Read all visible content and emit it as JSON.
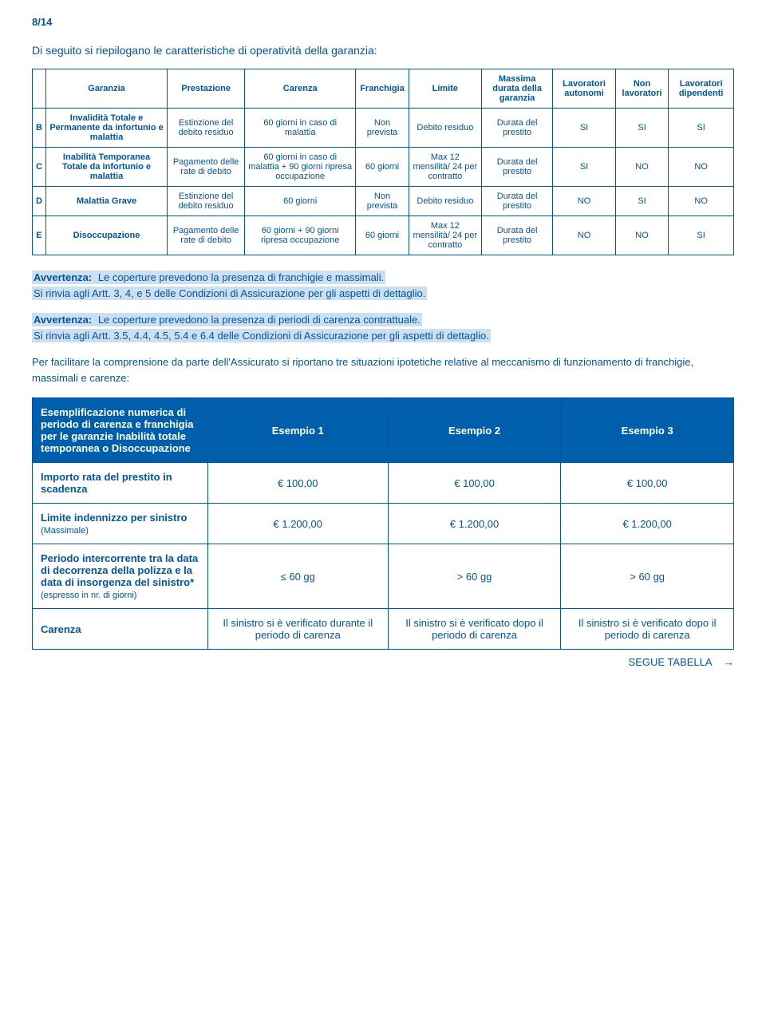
{
  "page_number": "8/14",
  "intro": "Di seguito si riepilogano le caratteristiche di operatività della garanzia:",
  "main_table": {
    "headers": [
      "",
      "Garanzia",
      "Prestazione",
      "Carenza",
      "Franchigia",
      "Limite",
      "Massima durata della garanzia",
      "Lavoratori autonomi",
      "Non lavoratori",
      "Lavoratori dipendenti"
    ],
    "rows": [
      {
        "k": "B",
        "g": "Invalidità Totale e Permanente da infortunio e malattia",
        "p": "Estinzione del debito residuo",
        "c": "60 giorni in caso di malattia",
        "f": "Non prevista",
        "l": "Debito residuo",
        "m": "Durata del prestito",
        "a": "SI",
        "n": "SI",
        "d": "SI"
      },
      {
        "k": "C",
        "g": "Inabilità Temporanea Totale da infortunio e malattia",
        "p": "Pagamento delle rate di debito",
        "c": "60 giorni in caso di malattia + 90 giorni ripresa occupazione",
        "f": "60 giorni",
        "l": "Max 12 mensilità/ 24 per contratto",
        "m": "Durata del prestito",
        "a": "SI",
        "n": "NO",
        "d": "NO"
      },
      {
        "k": "D",
        "g": "Malattia Grave",
        "p": "Estinzione del debito residuo",
        "c": "60 giorni",
        "f": "Non prevista",
        "l": "Debito residuo",
        "m": "Durata del prestito",
        "a": "NO",
        "n": "SI",
        "d": "NO"
      },
      {
        "k": "E",
        "g": "Disoccupazione",
        "p": "Pagamento delle rate di debito",
        "c": "60 giorni + 90 giorni ripresa occupazione",
        "f": "60 giorni",
        "l": "Max 12 mensilità/ 24 per contratto",
        "m": "Durata del prestito",
        "a": "NO",
        "n": "NO",
        "d": "SI"
      }
    ]
  },
  "warnings": {
    "w1a": "Avvertenza:",
    "w1b": " Le coperture prevedono la presenza di franchigie e massimali.",
    "w1c": "Si rinvia agli Artt. 3, 4, e 5  delle Condizioni di Assicurazione per gli aspetti di dettaglio.",
    "w2a": "Avvertenza:",
    "w2b": " Le coperture prevedono la presenza di periodi di carenza contrattuale.",
    "w2c": "Si rinvia agli Artt. 3.5, 4.4, 4.5, 5.4 e 6.4 delle Condizioni di Assicurazione per gli aspetti di dettaglio.",
    "w3": "Per facilitare la comprensione da parte dell'Assicurato si riportano tre situazioni ipotetiche relative al meccanismo di funzionamento di franchigie, massimali e carenze:"
  },
  "ex_table": {
    "header_label": "Esemplificazione numerica di periodo di carenza e franchigia per le garanzie Inabilità totale temporanea o Disoccupazione",
    "col_headers": [
      "Esempio 1",
      "Esempio 2",
      "Esempio 3"
    ],
    "rows": [
      {
        "label": "Importo rata del prestito in scadenza",
        "note": "",
        "v": [
          "€ 100,00",
          "€ 100,00",
          "€ 100,00"
        ]
      },
      {
        "label": "Limite indennizzo per sinistro",
        "note": "(Massimale)",
        "v": [
          "€ 1.200,00",
          "€ 1.200,00",
          "€ 1.200,00"
        ]
      },
      {
        "label": "Periodo intercorrente tra la data di decorrenza della polizza e la data di insorgenza del sinistro*",
        "note": "(espresso in nr. di giorni)",
        "v": [
          "≤ 60 gg",
          "> 60 gg",
          "> 60 gg"
        ]
      },
      {
        "label": "Carenza",
        "note": "",
        "v": [
          "Il sinistro si è verificato durante il periodo di carenza",
          "Il sinistro si è verificato dopo il periodo di carenza",
          "Il sinistro si è verificato dopo il periodo di carenza"
        ]
      }
    ]
  },
  "follow": "SEGUE TABELLA",
  "arrow": "→",
  "colors": {
    "brand_blue": "#0055a5",
    "header_blue": "#005fad",
    "highlight": "#cce0f2",
    "white": "#ffffff"
  }
}
